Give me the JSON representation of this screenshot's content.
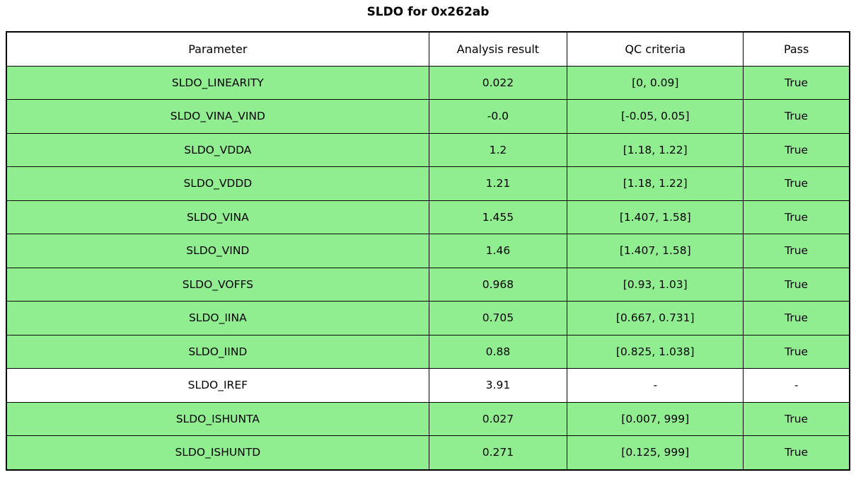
{
  "title": "SLDO for 0x262ab",
  "colors": {
    "pass_green": "#90ee90",
    "row_white": "#ffffff",
    "border": "#000000"
  },
  "table": {
    "headers": [
      "Parameter",
      "Analysis result",
      "QC criteria",
      "Pass"
    ],
    "rows": [
      {
        "parameter": "SLDO_LINEARITY",
        "analysis_result": "0.022",
        "qc_criteria": "[0, 0.09]",
        "pass": "True",
        "highlight": true
      },
      {
        "parameter": "SLDO_VINA_VIND",
        "analysis_result": "-0.0",
        "qc_criteria": "[-0.05, 0.05]",
        "pass": "True",
        "highlight": true
      },
      {
        "parameter": "SLDO_VDDA",
        "analysis_result": "1.2",
        "qc_criteria": "[1.18, 1.22]",
        "pass": "True",
        "highlight": true
      },
      {
        "parameter": "SLDO_VDDD",
        "analysis_result": "1.21",
        "qc_criteria": "[1.18, 1.22]",
        "pass": "True",
        "highlight": true
      },
      {
        "parameter": "SLDO_VINA",
        "analysis_result": "1.455",
        "qc_criteria": "[1.407, 1.58]",
        "pass": "True",
        "highlight": true
      },
      {
        "parameter": "SLDO_VIND",
        "analysis_result": "1.46",
        "qc_criteria": "[1.407, 1.58]",
        "pass": "True",
        "highlight": true
      },
      {
        "parameter": "SLDO_VOFFS",
        "analysis_result": "0.968",
        "qc_criteria": "[0.93, 1.03]",
        "pass": "True",
        "highlight": true
      },
      {
        "parameter": "SLDO_IINA",
        "analysis_result": "0.705",
        "qc_criteria": "[0.667, 0.731]",
        "pass": "True",
        "highlight": true
      },
      {
        "parameter": "SLDO_IIND",
        "analysis_result": "0.88",
        "qc_criteria": "[0.825, 1.038]",
        "pass": "True",
        "highlight": true
      },
      {
        "parameter": "SLDO_IREF",
        "analysis_result": "3.91",
        "qc_criteria": "-",
        "pass": "-",
        "highlight": false
      },
      {
        "parameter": "SLDO_ISHUNTA",
        "analysis_result": "0.027",
        "qc_criteria": "[0.007, 999]",
        "pass": "True",
        "highlight": true
      },
      {
        "parameter": "SLDO_ISHUNTD",
        "analysis_result": "0.271",
        "qc_criteria": "[0.125, 999]",
        "pass": "True",
        "highlight": true
      }
    ]
  },
  "chart_data": {
    "type": "table",
    "title": "SLDO for 0x262ab",
    "columns": [
      "Parameter",
      "Analysis result",
      "QC criteria",
      "Pass"
    ],
    "rows": [
      [
        "SLDO_LINEARITY",
        0.022,
        "[0, 0.09]",
        "True"
      ],
      [
        "SLDO_VINA_VIND",
        -0.0,
        "[-0.05, 0.05]",
        "True"
      ],
      [
        "SLDO_VDDA",
        1.2,
        "[1.18, 1.22]",
        "True"
      ],
      [
        "SLDO_VDDD",
        1.21,
        "[1.18, 1.22]",
        "True"
      ],
      [
        "SLDO_VINA",
        1.455,
        "[1.407, 1.58]",
        "True"
      ],
      [
        "SLDO_VIND",
        1.46,
        "[1.407, 1.58]",
        "True"
      ],
      [
        "SLDO_VOFFS",
        0.968,
        "[0.93, 1.03]",
        "True"
      ],
      [
        "SLDO_IINA",
        0.705,
        "[0.667, 0.731]",
        "True"
      ],
      [
        "SLDO_IIND",
        0.88,
        "[0.825, 1.038]",
        "True"
      ],
      [
        "SLDO_IREF",
        3.91,
        "-",
        "-"
      ],
      [
        "SLDO_ISHUNTA",
        0.027,
        "[0.007, 999]",
        "True"
      ],
      [
        "SLDO_ISHUNTD",
        0.271,
        "[0.125, 999]",
        "True"
      ]
    ],
    "layout_hints": {
      "highlight_color_pass": "#90ee90",
      "non_highlighted_rows": [
        "SLDO_IREF"
      ],
      "header_background": "#ffffff",
      "grid": true
    }
  }
}
